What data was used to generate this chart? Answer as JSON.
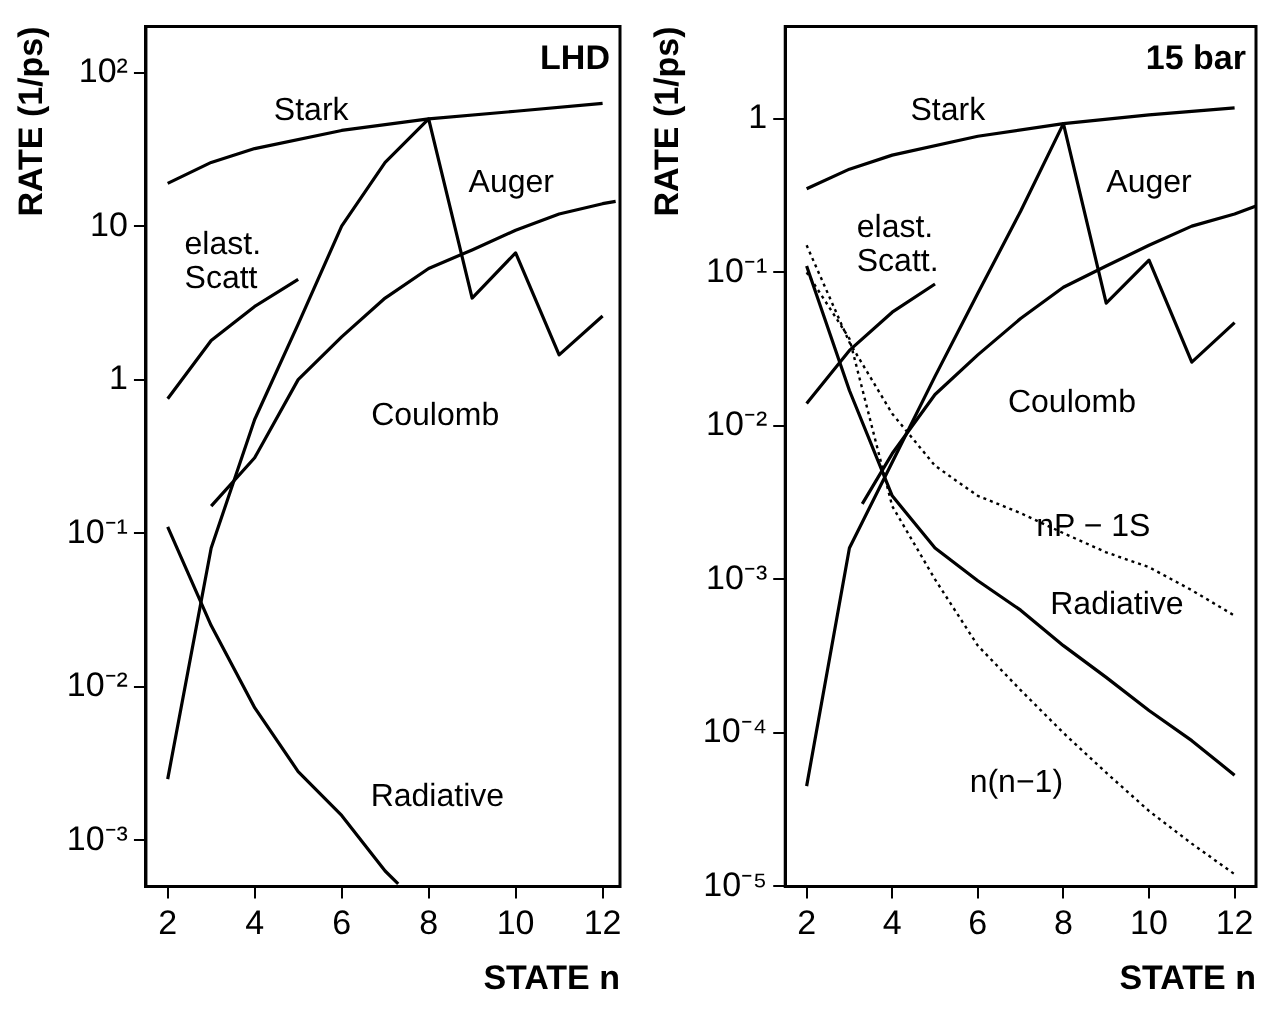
{
  "chart_data": [
    {
      "type": "line",
      "title": "LHD",
      "xlabel": "STATE n",
      "ylabel": "RATE (1/ps)",
      "log": "y",
      "grid": false,
      "legend": false,
      "marker": "none",
      "xlim": [
        1.5,
        12.4
      ],
      "xticks": [
        2,
        4,
        6,
        8,
        10,
        12
      ],
      "ylim": [
        0.0005,
        200
      ],
      "yticks": [
        {
          "value": 0.001,
          "label": "10⁻³"
        },
        {
          "value": 0.01,
          "label": "10⁻²"
        },
        {
          "value": 0.1,
          "label": "10⁻¹"
        },
        {
          "value": 1,
          "label": "1"
        },
        {
          "value": 10,
          "label": "10"
        },
        {
          "value": 100,
          "label": "10²"
        }
      ],
      "series": [
        {
          "name": "Stark",
          "color": "#000000",
          "line_style": "solid",
          "x": [
            2,
            3,
            4,
            6,
            8,
            10,
            12
          ],
          "values": [
            19,
            26,
            32,
            42,
            50,
            56,
            63
          ]
        },
        {
          "name": "Auger",
          "color": "#000000",
          "line_style": "solid",
          "x": [
            2,
            3,
            4,
            5,
            6,
            7,
            8,
            9,
            10,
            11,
            12
          ],
          "values": [
            0.0025,
            0.08,
            0.55,
            2.3,
            10,
            26,
            50,
            3.4,
            6.7,
            1.45,
            2.6
          ]
        },
        {
          "name": "Coulomb",
          "color": "#000000",
          "line_style": "solid",
          "x": [
            3,
            4,
            5,
            6,
            7,
            8,
            9,
            10,
            11,
            12,
            12.3
          ],
          "values": [
            0.15,
            0.31,
            1.0,
            1.9,
            3.4,
            5.3,
            7,
            9.4,
            12,
            14,
            14.5
          ]
        },
        {
          "name": "elast. Scatt",
          "color": "#000000",
          "line_style": "solid",
          "x": [
            2,
            3,
            4,
            5
          ],
          "values": [
            0.75,
            1.8,
            3,
            4.5
          ]
        },
        {
          "name": "Radiative",
          "color": "#000000",
          "line_style": "solid",
          "x": [
            2,
            3,
            4,
            5,
            6,
            7,
            7.3
          ],
          "values": [
            0.11,
            0.025,
            0.0073,
            0.0028,
            0.00145,
            0.00063,
            0.00052
          ]
        }
      ]
    },
    {
      "type": "line",
      "title": "15 bar",
      "xlabel": "STATE n",
      "ylabel": "RATE (1/ps)",
      "log": "y",
      "grid": false,
      "legend": false,
      "marker": "none",
      "xlim": [
        1.5,
        12.5
      ],
      "xticks": [
        2,
        4,
        6,
        8,
        10,
        12
      ],
      "ylim": [
        1e-05,
        4
      ],
      "yticks": [
        {
          "value": 1e-05,
          "label": "10⁻⁵"
        },
        {
          "value": 0.0001,
          "label": "10⁻⁴"
        },
        {
          "value": 0.001,
          "label": "10⁻³"
        },
        {
          "value": 0.01,
          "label": "10⁻²"
        },
        {
          "value": 0.1,
          "label": "10⁻¹"
        },
        {
          "value": 1,
          "label": "1"
        }
      ],
      "series": [
        {
          "name": "Stark",
          "color": "#000000",
          "line_style": "solid",
          "x": [
            2,
            3,
            4,
            6,
            8,
            10,
            12
          ],
          "values": [
            0.35,
            0.47,
            0.58,
            0.77,
            0.93,
            1.06,
            1.18
          ]
        },
        {
          "name": "Auger",
          "color": "#000000",
          "line_style": "solid",
          "x": [
            2,
            3,
            4,
            5,
            6,
            7,
            8,
            9,
            10,
            11,
            12
          ],
          "values": [
            4.5e-05,
            0.0016,
            0.0058,
            0.021,
            0.073,
            0.25,
            0.93,
            0.063,
            0.12,
            0.026,
            0.047
          ]
        },
        {
          "name": "Coulomb",
          "color": "#000000",
          "line_style": "solid",
          "x": [
            3.3,
            4,
            5,
            6,
            7,
            8,
            9,
            10,
            11,
            12,
            12.5
          ],
          "values": [
            0.0031,
            0.0066,
            0.016,
            0.029,
            0.05,
            0.08,
            0.11,
            0.15,
            0.2,
            0.24,
            0.27
          ]
        },
        {
          "name": "elast. Scatt.",
          "color": "#000000",
          "line_style": "solid",
          "x": [
            2,
            3,
            4,
            5
          ],
          "values": [
            0.014,
            0.031,
            0.055,
            0.084
          ]
        },
        {
          "name": "Radiative",
          "color": "#000000",
          "line_style": "solid",
          "x": [
            2,
            3,
            4,
            5,
            6,
            7,
            8,
            9,
            10,
            11,
            12
          ],
          "values": [
            0.11,
            0.017,
            0.0035,
            0.0016,
            0.00098,
            0.00063,
            0.00037,
            0.00023,
            0.00014,
            8.9e-05,
            5.3e-05
          ]
        },
        {
          "name": "nP − 1S",
          "color": "#000000",
          "line_style": "dotted",
          "x": [
            2,
            3,
            4,
            5,
            6,
            7,
            8,
            9,
            10,
            11,
            12
          ],
          "values": [
            0.15,
            0.035,
            0.012,
            0.0055,
            0.0035,
            0.0027,
            0.002,
            0.0015,
            0.0012,
            0.00085,
            0.00058
          ]
        },
        {
          "name": "n(n−1)",
          "color": "#000000",
          "line_style": "dotted",
          "x": [
            2,
            3,
            4,
            5,
            6,
            7,
            8,
            9,
            10,
            11,
            12
          ],
          "values": [
            0.1,
            0.037,
            0.003,
            0.001,
            0.00037,
            0.00019,
            0.0001,
            5.5e-05,
            3.1e-05,
            1.9e-05,
            1.2e-05
          ]
        }
      ]
    }
  ]
}
